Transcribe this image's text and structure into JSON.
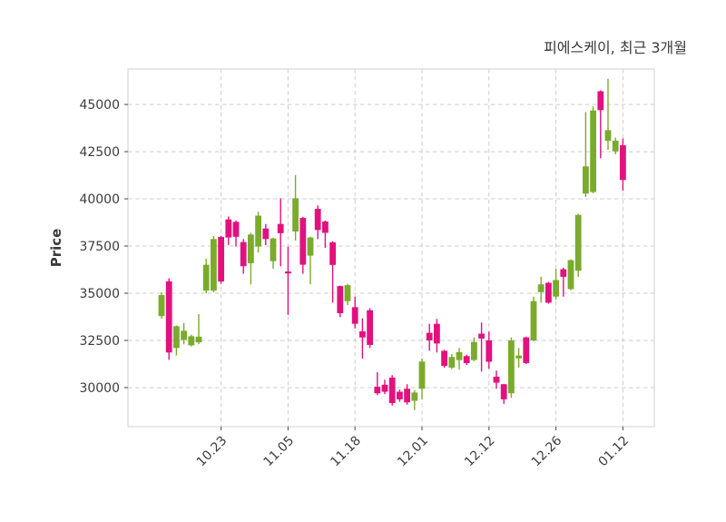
{
  "chart_data": {
    "type": "candlestick",
    "title": "피에스케이, 최근 3개월",
    "ylabel": "Price",
    "xlabel": "",
    "legend": "none",
    "grid": "dashed",
    "ylim": [
      27930,
      46880
    ],
    "y_ticks": [
      30000,
      32500,
      35000,
      37500,
      40000,
      42500,
      45000
    ],
    "x_tick_labels": [
      "10.23",
      "11.05",
      "11.18",
      "12.01",
      "12.12",
      "12.26",
      "01.12"
    ],
    "x_tick_indices": [
      8,
      17,
      26,
      35,
      44,
      53,
      62
    ],
    "colors": {
      "up": "#7aab2d",
      "down": "#e2117f",
      "grid": "#cdcdcd",
      "spine": "#d9d9d9",
      "text": "#3d3d3d",
      "background": "#ffffff"
    },
    "candles_format": [
      "open",
      "high",
      "low",
      "close"
    ],
    "candles": [
      [
        33790,
        35050,
        33650,
        34900
      ],
      [
        35630,
        35790,
        31470,
        31860
      ],
      [
        32100,
        33300,
        31700,
        33250
      ],
      [
        32530,
        33430,
        32290,
        33010
      ],
      [
        32240,
        32800,
        32180,
        32720
      ],
      [
        32400,
        33890,
        32300,
        32700
      ],
      [
        35140,
        36830,
        35000,
        36510
      ],
      [
        35140,
        38030,
        35050,
        37870
      ],
      [
        37980,
        38050,
        35500,
        35620
      ],
      [
        38910,
        39070,
        37550,
        37950
      ],
      [
        38780,
        38850,
        37470,
        37990
      ],
      [
        37710,
        37870,
        36030,
        36430
      ],
      [
        36590,
        38200,
        35470,
        38110
      ],
      [
        37470,
        39320,
        37150,
        39110
      ],
      [
        38430,
        38670,
        37550,
        37870
      ],
      [
        36700,
        37950,
        36300,
        37900
      ],
      [
        38670,
        40030,
        36430,
        38180
      ],
      [
        36150,
        37470,
        33850,
        36050
      ],
      [
        38270,
        41260,
        37790,
        40030
      ],
      [
        38990,
        39050,
        36030,
        36510
      ],
      [
        36990,
        38000,
        35470,
        37950
      ],
      [
        39470,
        39650,
        37870,
        38350
      ],
      [
        38800,
        38850,
        37400,
        38200
      ],
      [
        37700,
        37750,
        34500,
        36500
      ],
      [
        35380,
        35400,
        33730,
        33940
      ],
      [
        34580,
        35500,
        34370,
        35430
      ],
      [
        34260,
        34820,
        33140,
        33380
      ],
      [
        32980,
        33670,
        31540,
        32660
      ],
      [
        34100,
        34210,
        32100,
        32260
      ],
      [
        30050,
        30820,
        29600,
        29700
      ],
      [
        30150,
        30420,
        29650,
        29780
      ],
      [
        30530,
        30660,
        29050,
        29180
      ],
      [
        29780,
        29900,
        29250,
        29380
      ],
      [
        29940,
        30180,
        29100,
        29220
      ],
      [
        29300,
        29870,
        28810,
        29740
      ],
      [
        29940,
        31540,
        29380,
        31380
      ],
      [
        32900,
        33380,
        31950,
        32500
      ],
      [
        33380,
        33640,
        31860,
        32340
      ],
      [
        31950,
        32000,
        31050,
        31150
      ],
      [
        31060,
        31780,
        30980,
        31620
      ],
      [
        31460,
        32100,
        30950,
        31880
      ],
      [
        31670,
        31750,
        31200,
        31300
      ],
      [
        31460,
        32660,
        31400,
        32420
      ],
      [
        32860,
        33450,
        30850,
        32600
      ],
      [
        32500,
        32970,
        31000,
        31370
      ],
      [
        30580,
        30900,
        29940,
        30260
      ],
      [
        30180,
        30200,
        29140,
        29380
      ],
      [
        29700,
        32660,
        29460,
        32500
      ],
      [
        31550,
        32100,
        31060,
        31700
      ],
      [
        32660,
        32700,
        31250,
        31300
      ],
      [
        32500,
        34820,
        32450,
        34580
      ],
      [
        35060,
        35870,
        34500,
        35470
      ],
      [
        35550,
        35600,
        34450,
        34500
      ],
      [
        34820,
        36300,
        34660,
        35700
      ],
      [
        36270,
        36350,
        34820,
        35870
      ],
      [
        35220,
        36800,
        35150,
        36750
      ],
      [
        36190,
        39200,
        35870,
        39150
      ],
      [
        40280,
        44600,
        40100,
        41720
      ],
      [
        40360,
        44900,
        40300,
        44680
      ],
      [
        45700,
        45750,
        42150,
        44700
      ],
      [
        43080,
        46360,
        42600,
        43640
      ],
      [
        42520,
        43240,
        42360,
        43080
      ],
      [
        42840,
        43200,
        40430,
        41000
      ]
    ]
  }
}
